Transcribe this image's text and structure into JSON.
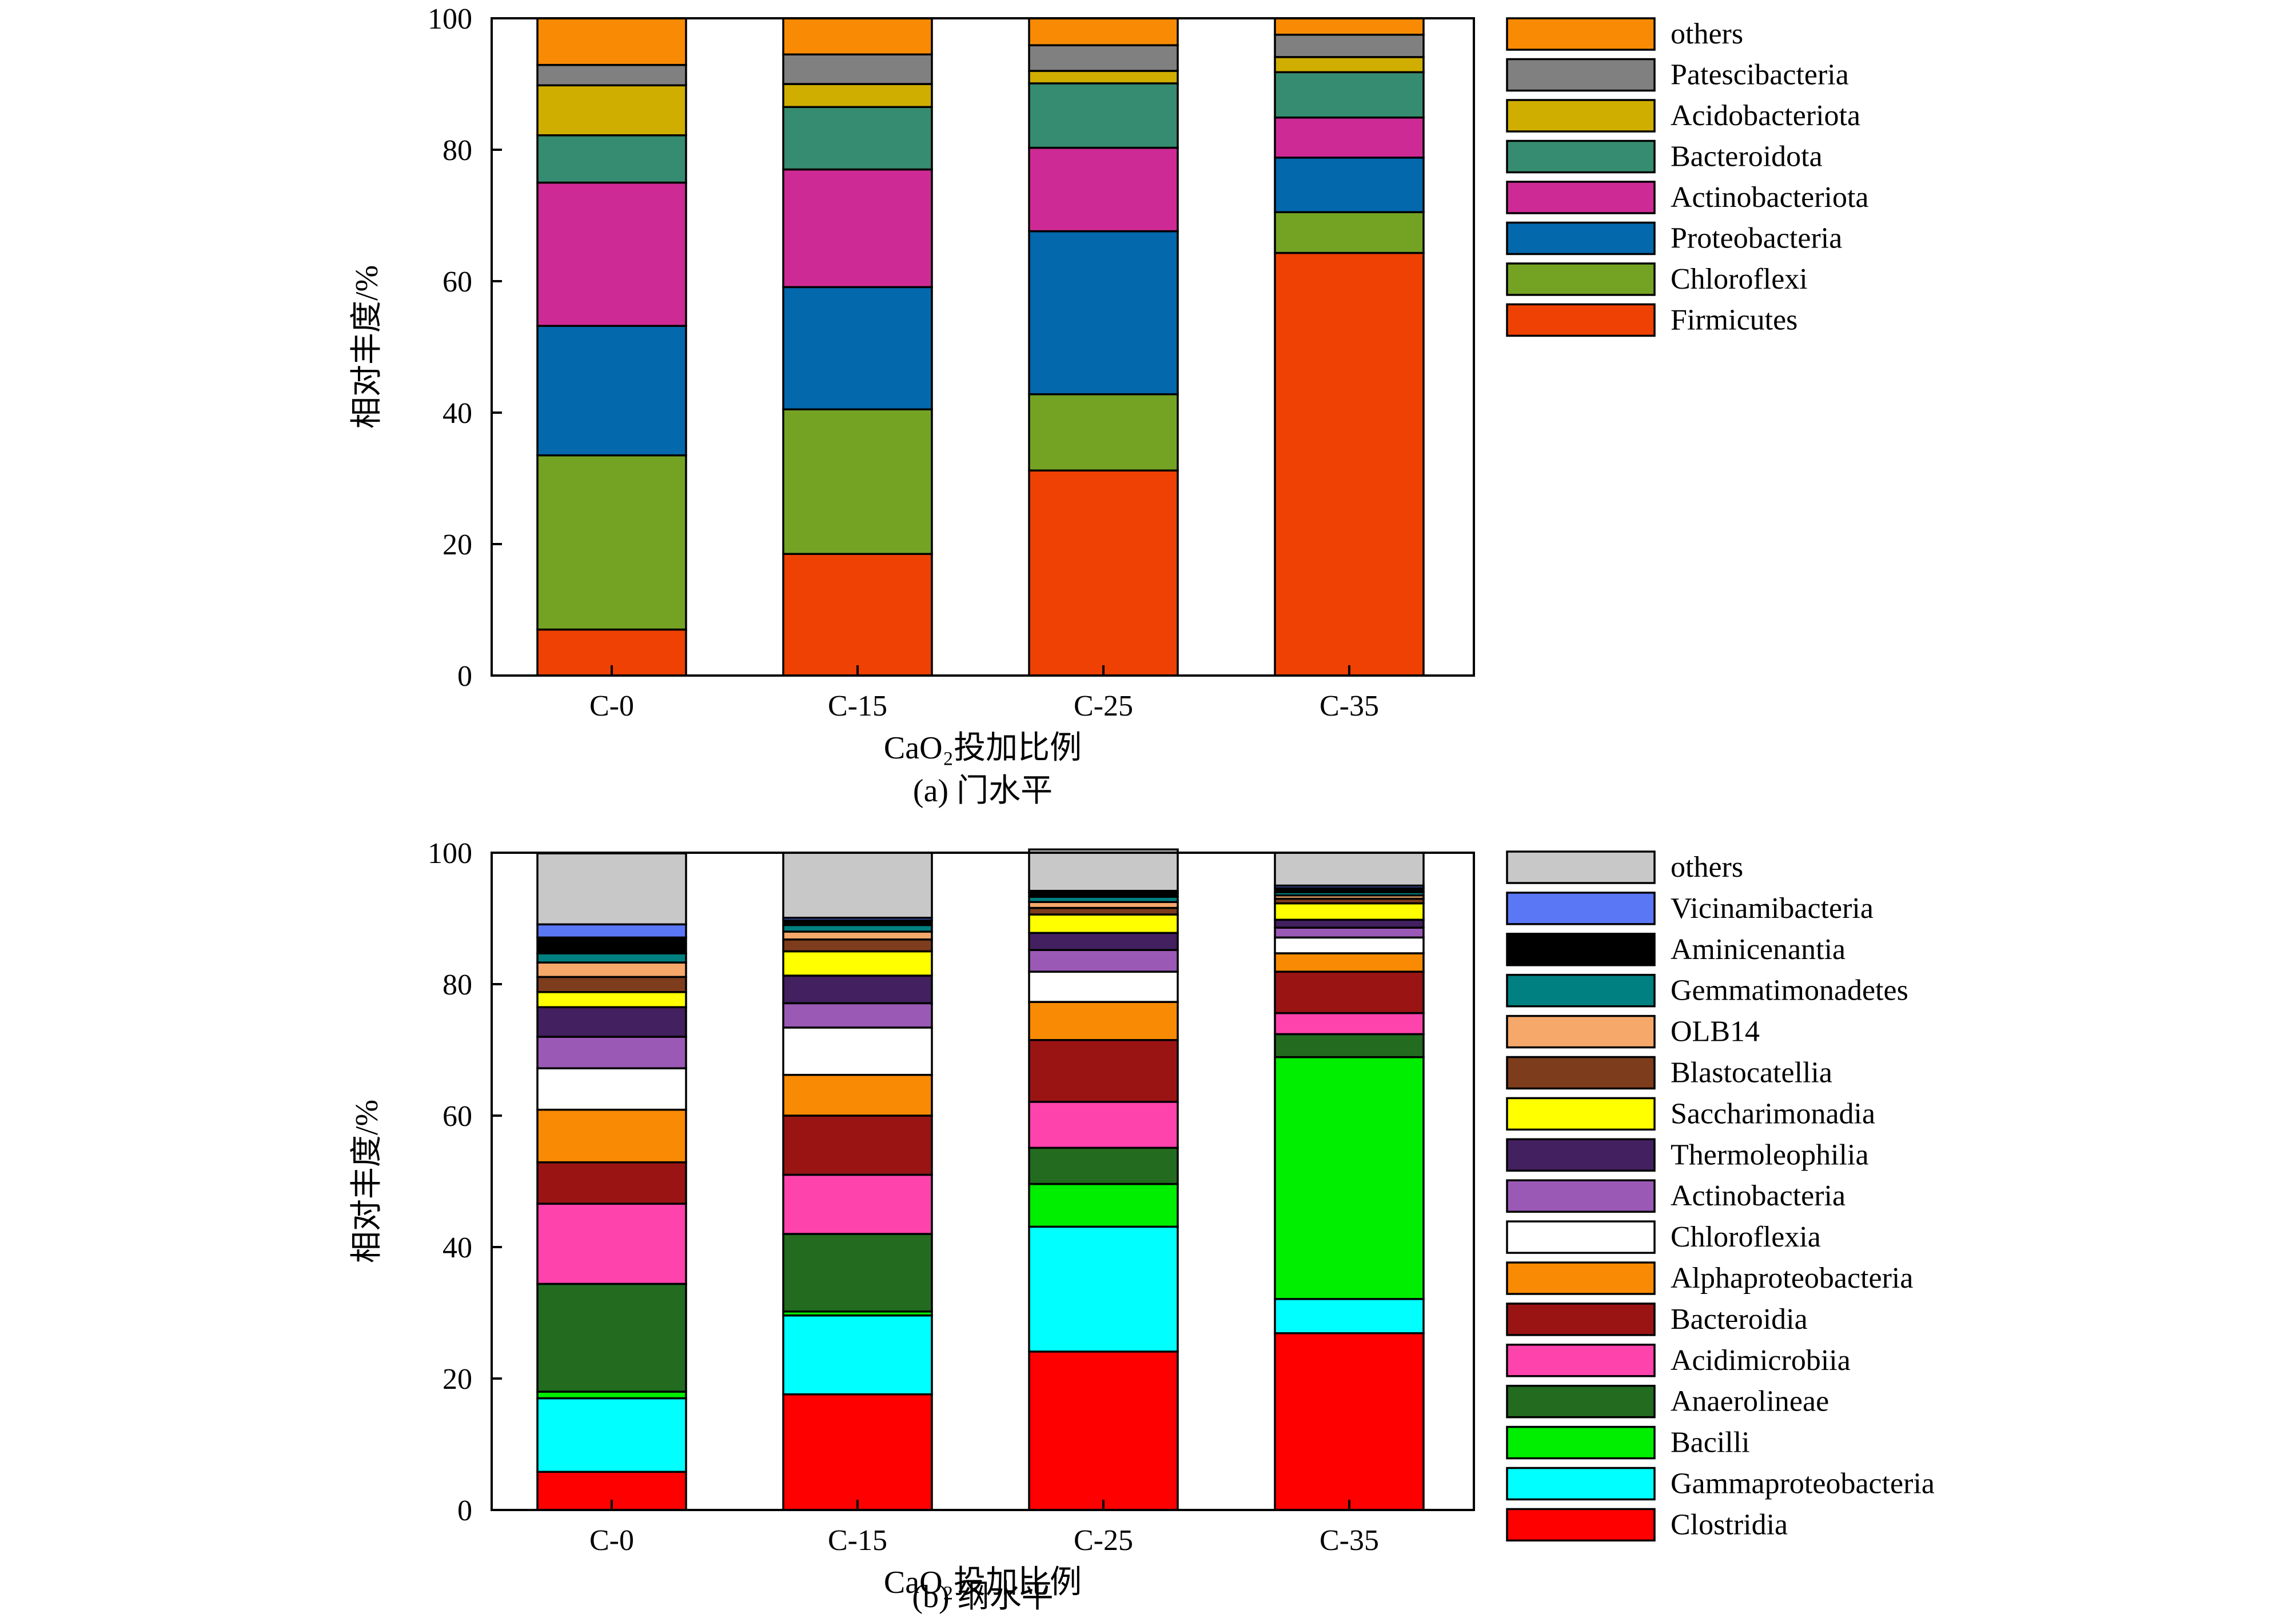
{
  "chart_data": [
    {
      "type": "bar",
      "stacked": true,
      "caption": "(a) 门水平",
      "xlabel": "CaO₂投加比例",
      "ylabel": "相对丰度/%",
      "ylim": [
        0,
        100
      ],
      "yticks": [
        "0",
        "20",
        "40",
        "60",
        "80",
        "100"
      ],
      "categories": [
        "C-0",
        "C-15",
        "C-25",
        "C-35"
      ],
      "legend_position": "right",
      "series": [
        {
          "name": "Firmicutes",
          "color": "#EE4103",
          "values": [
            7,
            18.5,
            31.2,
            64.3
          ]
        },
        {
          "name": "Chloroflexi",
          "color": "#74A324",
          "values": [
            26.5,
            22,
            11.6,
            6.2
          ]
        },
        {
          "name": "Proteobacteria",
          "color": "#0368AC",
          "values": [
            19.7,
            18.6,
            24.8,
            8.3
          ]
        },
        {
          "name": "Actinobacteriota",
          "color": "#CE2A95",
          "values": [
            21.8,
            17.9,
            12.7,
            6.1
          ]
        },
        {
          "name": "Bacteroidota",
          "color": "#368C70",
          "values": [
            7.2,
            9.5,
            9.8,
            6.9
          ]
        },
        {
          "name": "Acidobacteriota",
          "color": "#CFAE00",
          "values": [
            7.6,
            3.5,
            1.9,
            2.3
          ]
        },
        {
          "name": "Patescibacteria",
          "color": "#808080",
          "values": [
            3.1,
            4.5,
            3.9,
            3.4
          ]
        },
        {
          "name": "others",
          "color": "#F98A03",
          "values": [
            7.1,
            5.5,
            4.1,
            2.5
          ]
        }
      ]
    },
    {
      "type": "bar",
      "stacked": true,
      "caption": "(b) 纲水平",
      "xlabel": "CaO₂投加比例",
      "ylabel": "相对丰度/%",
      "ylim": [
        0,
        100
      ],
      "yticks": [
        "0",
        "20",
        "40",
        "60",
        "80",
        "100"
      ],
      "categories": [
        "C-0",
        "C-15",
        "C-25",
        "C-35"
      ],
      "legend_position": "right",
      "series": [
        {
          "name": "Clostridia",
          "color": "#FF0000",
          "values": [
            5.8,
            17.6,
            24.1,
            26.9
          ]
        },
        {
          "name": "Gammaproteobacteria",
          "color": "#00FFFF",
          "values": [
            11.2,
            12.0,
            19.0,
            5.2
          ]
        },
        {
          "name": "Bacilli",
          "color": "#00EE00",
          "values": [
            1.0,
            0.6,
            6.5,
            36.8
          ]
        },
        {
          "name": "Anaerolineae",
          "color": "#226B1F",
          "values": [
            16.4,
            11.8,
            5.5,
            3.5
          ]
        },
        {
          "name": "Acidimicrobiia",
          "color": "#FF43AD",
          "values": [
            12.2,
            9.0,
            7.0,
            3.2
          ]
        },
        {
          "name": "Bacteroidia",
          "color": "#9B1414",
          "values": [
            6.3,
            9.0,
            9.4,
            6.3
          ]
        },
        {
          "name": "Alphaproteobacteria",
          "color": "#F98A03",
          "values": [
            8.0,
            6.2,
            5.8,
            2.8
          ]
        },
        {
          "name": "Chloroflexia",
          "color": "#FFFFFF",
          "values": [
            6.3,
            7.2,
            4.6,
            2.4
          ]
        },
        {
          "name": "Actinobacteria",
          "color": "#9B59B6",
          "values": [
            4.8,
            3.7,
            3.3,
            1.5
          ]
        },
        {
          "name": "Thermoleophilia",
          "color": "#432060",
          "values": [
            4.5,
            4.2,
            2.6,
            1.2
          ]
        },
        {
          "name": "Saccharimonadia",
          "color": "#FFFF00",
          "values": [
            2.3,
            3.7,
            2.8,
            2.5
          ]
        },
        {
          "name": "Blastocatellia",
          "color": "#7D3D1C",
          "values": [
            2.3,
            1.8,
            1.0,
            0.7
          ]
        },
        {
          "name": "OLB14",
          "color": "#F5A86A",
          "values": [
            2.2,
            1.2,
            0.9,
            0.5
          ]
        },
        {
          "name": "Gemmatimonadetes",
          "color": "#008080",
          "values": [
            1.4,
            1.0,
            0.8,
            0.5
          ]
        },
        {
          "name": "Aminicenantia",
          "color": "#000000",
          "values": [
            2.4,
            0.7,
            0.6,
            0.6
          ]
        },
        {
          "name": "Vicinamibacteria",
          "color": "#5A78F6",
          "values": [
            2.0,
            0.4,
            0.3,
            0.4
          ]
        },
        {
          "name": "others",
          "color": "#C8C8C8",
          "values": [
            10.8,
            9.9,
            6.3,
            5.0
          ]
        }
      ]
    }
  ]
}
